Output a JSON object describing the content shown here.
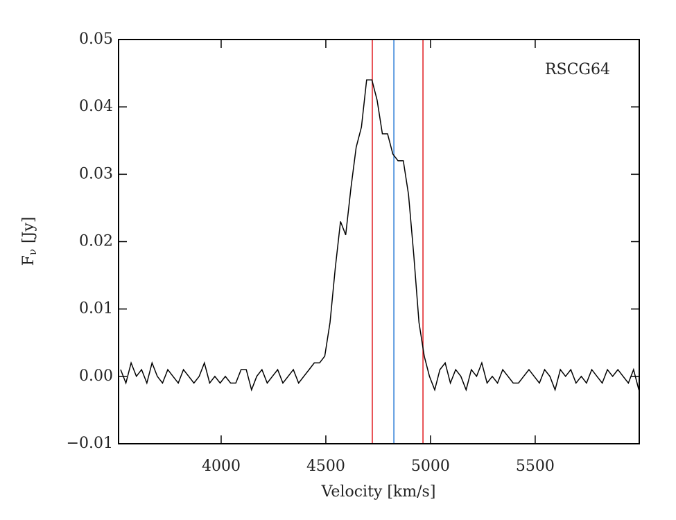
{
  "chart_data": {
    "type": "line",
    "annotation": "RSCG64",
    "xlabel": "Velocity [km/s]",
    "ylabel": {
      "main": "F",
      "sub": "ν",
      "unit": "[Jy]"
    },
    "xlim": [
      3510,
      5997
    ],
    "ylim": [
      -0.01,
      0.05
    ],
    "xticks": [
      4000,
      4500,
      5000,
      5500
    ],
    "yticks": [
      {
        "value": -0.01,
        "label": "−0.01"
      },
      {
        "value": 0,
        "label": "0.00"
      },
      0.01,
      0.02,
      0.03,
      0.04,
      0.05
    ],
    "vlines": [
      {
        "x": 4722,
        "color": "#e0191e"
      },
      {
        "x": 4825,
        "color": "#2a7bd5"
      },
      {
        "x": 4964,
        "color": "#e0191e"
      }
    ],
    "x": [
      3520,
      3545,
      3570,
      3595,
      3620,
      3645,
      3670,
      3695,
      3720,
      3745,
      3770,
      3795,
      3820,
      3845,
      3870,
      3895,
      3920,
      3945,
      3970,
      3995,
      4020,
      4045,
      4070,
      4095,
      4120,
      4145,
      4170,
      4195,
      4220,
      4245,
      4270,
      4295,
      4320,
      4345,
      4370,
      4395,
      4420,
      4445,
      4470,
      4495,
      4520,
      4545,
      4570,
      4595,
      4620,
      4645,
      4670,
      4695,
      4720,
      4745,
      4770,
      4795,
      4820,
      4845,
      4870,
      4895,
      4920,
      4945,
      4970,
      4995,
      5020,
      5045,
      5070,
      5095,
      5120,
      5145,
      5170,
      5195,
      5220,
      5245,
      5270,
      5295,
      5320,
      5345,
      5370,
      5395,
      5420,
      5445,
      5470,
      5495,
      5520,
      5545,
      5570,
      5595,
      5620,
      5645,
      5670,
      5695,
      5720,
      5745,
      5770,
      5795,
      5820,
      5845,
      5870,
      5895,
      5920,
      5945,
      5970,
      5995
    ],
    "series": [
      {
        "color": "#000000",
        "values": [
          0.001,
          -0.001,
          0.002,
          0.0,
          0.001,
          -0.001,
          0.002,
          0.0,
          -0.001,
          0.001,
          0.0,
          -0.001,
          0.001,
          0.0,
          -0.001,
          0.0,
          0.002,
          -0.001,
          0.0,
          -0.001,
          0.0,
          -0.001,
          -0.001,
          0.001,
          0.001,
          -0.002,
          0.0,
          0.001,
          -0.001,
          0.0,
          0.001,
          -0.001,
          0.0,
          0.001,
          -0.001,
          0.0,
          0.001,
          0.002,
          0.002,
          0.003,
          0.008,
          0.016,
          0.023,
          0.021,
          0.028,
          0.034,
          0.037,
          0.044,
          0.044,
          0.041,
          0.036,
          0.036,
          0.033,
          0.032,
          0.032,
          0.027,
          0.018,
          0.008,
          0.003,
          0.0,
          -0.002,
          0.001,
          0.002,
          -0.001,
          0.001,
          0.0,
          -0.002,
          0.001,
          0.0,
          0.002,
          -0.001,
          0.0,
          -0.001,
          0.001,
          0.0,
          -0.001,
          -0.001,
          0.0,
          0.001,
          0.0,
          -0.001,
          0.001,
          0.0,
          -0.002,
          0.001,
          0.0,
          0.001,
          -0.001,
          0.0,
          -0.001,
          0.001,
          0.0,
          -0.001,
          0.001,
          0.0,
          0.001,
          0.0,
          -0.001,
          0.001,
          -0.002
        ]
      }
    ]
  }
}
